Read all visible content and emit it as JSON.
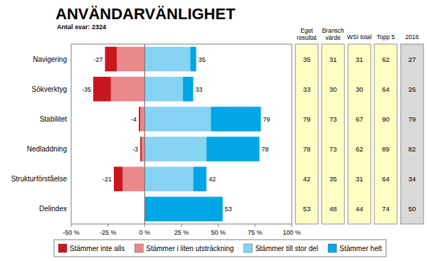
{
  "chart_data": {
    "type": "bar",
    "orientation": "horizontal",
    "stacked": true,
    "title": "ANVÄNDARVÄNLIGHET",
    "subtitle": "Antal svar: 2324",
    "categories": [
      "Navigering",
      "Sökverktyg",
      "Stabilitet",
      "Nedladdning",
      "Strukturförståelse",
      "Delindex"
    ],
    "series": [
      {
        "name": "Stämmer inte alls",
        "color": "#c8171e",
        "values": [
          -8,
          -12,
          -1,
          -1,
          -6,
          null
        ]
      },
      {
        "name": "Stämmer i liten utsträckning",
        "color": "#e9898b",
        "values": [
          -19,
          -23,
          -3,
          -2,
          -15,
          null
        ]
      },
      {
        "name": "Stämmer till stor del",
        "color": "#87d3f4",
        "values": [
          31,
          26,
          45,
          42,
          33,
          null
        ]
      },
      {
        "name": "Stämmer helt",
        "color": "#00a6e6",
        "values": [
          4,
          7,
          34,
          36,
          9,
          53
        ]
      }
    ],
    "negative_labels": [
      -27,
      -35,
      -4,
      -3,
      -21,
      null
    ],
    "positive_labels": [
      35,
      33,
      79,
      78,
      42,
      53
    ],
    "xlim": [
      -50,
      100
    ],
    "xticks": [
      {
        "value": -50,
        "label": "-50 %"
      },
      {
        "value": -25,
        "label": "-25 %"
      },
      {
        "value": 0,
        "label": "0 %"
      },
      {
        "value": 25,
        "label": "25 %"
      },
      {
        "value": 50,
        "label": "50 %"
      },
      {
        "value": 75,
        "label": "75 %"
      },
      {
        "value": 100,
        "label": "100 %"
      }
    ],
    "grid": false,
    "legend": "bottom"
  },
  "table": {
    "columns": [
      [
        "Eget",
        "resultat"
      ],
      [
        "Bransch",
        "värde"
      ],
      [
        "WSI total"
      ],
      [
        "Topp 5"
      ],
      [
        "2016"
      ]
    ],
    "rows": [
      [
        35,
        31,
        31,
        62,
        27
      ],
      [
        33,
        30,
        30,
        64,
        26
      ],
      [
        79,
        73,
        67,
        90,
        79
      ],
      [
        78,
        73,
        62,
        89,
        82
      ],
      [
        42,
        35,
        31,
        64,
        34
      ],
      [
        53,
        48,
        44,
        74,
        50
      ]
    ]
  }
}
